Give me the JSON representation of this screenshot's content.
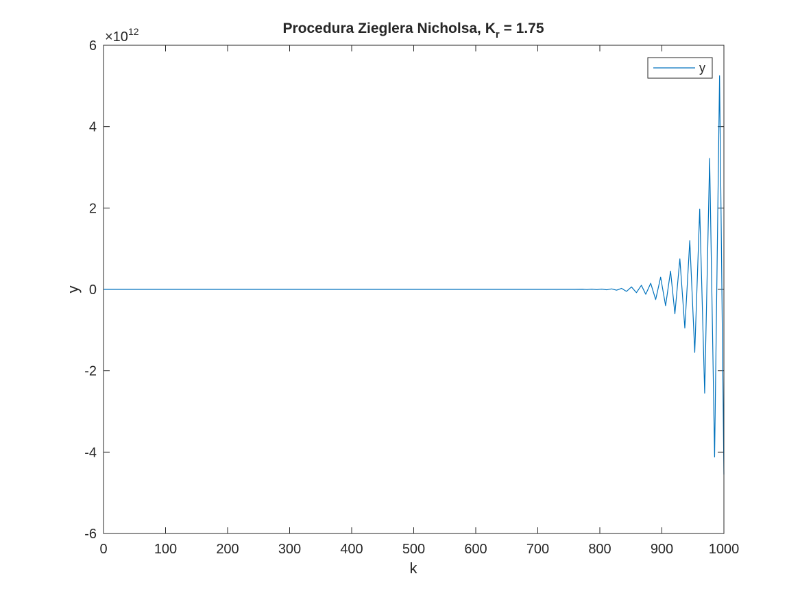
{
  "chart_data": {
    "type": "line",
    "title": "Procedura Zieglera Nicholsa, K",
    "title_subscript": "r",
    "title_suffix": " =  1.75",
    "xlabel": "k",
    "ylabel": "y",
    "xlim": [
      0,
      1000
    ],
    "ylim": [
      -6000000000000.0,
      6000000000000.0
    ],
    "x_ticks": [
      0,
      100,
      200,
      300,
      400,
      500,
      600,
      700,
      800,
      900,
      1000
    ],
    "x_tick_labels": [
      "0",
      "100",
      "200",
      "300",
      "400",
      "500",
      "600",
      "700",
      "800",
      "900",
      "1000"
    ],
    "y_ticks": [
      -6000000000000.0,
      -4000000000000.0,
      -2000000000000.0,
      0,
      2000000000000.0,
      4000000000000.0,
      6000000000000.0
    ],
    "y_tick_labels": [
      "-6",
      "-4",
      "-2",
      "0",
      "2",
      "4",
      "6"
    ],
    "y_exponent": {
      "base": "×10",
      "power": "12"
    },
    "grid": false,
    "legend_position": "top-right",
    "series": [
      {
        "name": "y",
        "color": "#0072BD",
        "points": [
          [
            0,
            0
          ],
          [
            760,
            0
          ],
          [
            772,
            2000000000.0
          ],
          [
            779,
            -3000000000.0
          ],
          [
            787,
            4000000000.0
          ],
          [
            795,
            -5000000000.0
          ],
          [
            803,
            6000000000.0
          ],
          [
            811,
            -10000000000.0
          ],
          [
            819,
            12000000000.0
          ],
          [
            827,
            -20000000000.0
          ],
          [
            835,
            25000000000.0
          ],
          [
            843,
            -50000000000.0
          ],
          [
            851,
            60000000000.0
          ],
          [
            859,
            -80000000000.0
          ],
          [
            867,
            100000000000.0
          ],
          [
            874,
            -120000000000.0
          ],
          [
            882,
            150000000000.0
          ],
          [
            890,
            -250000000000.0
          ],
          [
            898,
            300000000000.0
          ],
          [
            906,
            -400000000000.0
          ],
          [
            914,
            450000000000.0
          ],
          [
            921,
            -600000000000.0
          ],
          [
            929,
            750000000000.0
          ],
          [
            937,
            -950000000000.0
          ],
          [
            945,
            1200000000000.0
          ],
          [
            953,
            -1550000000000.0
          ],
          [
            961,
            1970000000000.0
          ],
          [
            969,
            -2550000000000.0
          ],
          [
            977,
            3220000000000.0
          ],
          [
            985,
            -4120000000000.0
          ],
          [
            993,
            5250000000000.0
          ],
          [
            1000,
            -4550000000000.0
          ]
        ]
      }
    ]
  }
}
